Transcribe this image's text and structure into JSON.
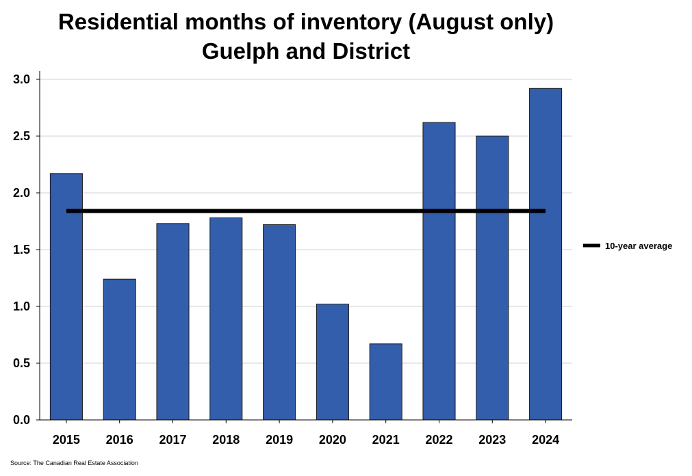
{
  "chart_data": {
    "type": "bar",
    "title": "Residential months of inventory (August only)",
    "subtitle": "Guelph and District",
    "categories": [
      "2015",
      "2016",
      "2017",
      "2018",
      "2019",
      "2020",
      "2021",
      "2022",
      "2023",
      "2024"
    ],
    "series": [
      {
        "name": "Months of inventory",
        "values": [
          2.17,
          1.24,
          1.73,
          1.78,
          1.72,
          1.02,
          0.67,
          2.62,
          2.5,
          2.92
        ]
      },
      {
        "name": "10-year average",
        "type": "line",
        "value": 1.84
      }
    ],
    "ylim": [
      0,
      3.0
    ],
    "yticks": [
      "0.0",
      "0.5",
      "1.0",
      "1.5",
      "2.0",
      "2.5",
      "3.0"
    ],
    "xlabel": "",
    "ylabel": "",
    "grid": true,
    "legend": {
      "position": "right",
      "entries": [
        "10-year average"
      ]
    },
    "source": "Source: The Canadian Real Estate Association",
    "colors": {
      "bar": "#335EAB",
      "bar_stroke": "#1a1a1a",
      "average": "#000000",
      "grid": "#d0d0d0"
    }
  }
}
